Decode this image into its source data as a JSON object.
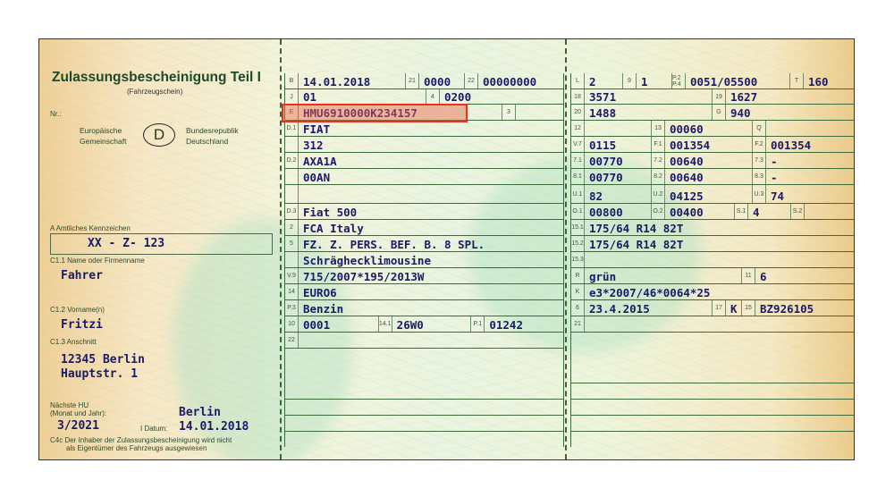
{
  "left": {
    "title": "Zulassungsbescheinigung Teil I",
    "subtitle": "(Fahrzeugschein)",
    "nr_label": "Nr.:",
    "eu_left": [
      "Europäische",
      "Gemeinschaft"
    ],
    "country_code": "D",
    "eu_right": [
      "Bundesrepublik",
      "Deutschland"
    ],
    "plate_label": "A Amtliches Kennzeichen",
    "plate": "XX - Z- 123",
    "name_label": "C1.1 Name oder Firmenname",
    "name": "Fahrer",
    "first_name_label": "C1.2 Vorname(n)",
    "first_name": "Fritzi",
    "address_label": "C1.3 Anschnitt",
    "address": [
      "12345 Berlin",
      "Hauptstr. 1"
    ],
    "hu_label": [
      "Nächste HU",
      "(Monat und Jahr):"
    ],
    "hu": "3/2021",
    "place": "Berlin",
    "date_label": "I Datum:",
    "date": "14.01.2018",
    "note": [
      "C4c Der Inhaber der Zulassungsbescheinigung wird nicht",
      "als Eigentümer des Fahrzeugs ausgewiesen"
    ]
  },
  "middle": [
    [
      {
        "code": "B",
        "value": "14.01.2018"
      },
      {
        "code": "21",
        "value": "0000"
      },
      {
        "code": "22",
        "value": "00000000"
      }
    ],
    [
      {
        "code": "J",
        "value": "01"
      },
      {
        "code": "4",
        "value": "0200"
      }
    ],
    [
      {
        "code": "E",
        "value": "HMU6910000K234157"
      },
      {
        "code": "3",
        "value": ""
      }
    ],
    [
      {
        "code": "D.1",
        "value": "FIAT"
      }
    ],
    [
      {
        "code": "",
        "value": "312"
      }
    ],
    [
      {
        "code": "D.2",
        "value": "AXA1A"
      }
    ],
    [
      {
        "code": "",
        "value": "00AN"
      }
    ],
    [
      {
        "code": "",
        "value": ""
      }
    ],
    [
      {
        "code": "D.3",
        "value": "Fiat 500"
      }
    ],
    [
      {
        "code": "2",
        "value": "FCA Italy"
      }
    ],
    [
      {
        "code": "5",
        "value": "FZ. Z. PERS. BEF. B. 8 SPL."
      }
    ],
    [
      {
        "code": "",
        "value": "Schräghecklimousine"
      }
    ],
    [
      {
        "code": "V.9",
        "value": "715/2007*195/2013W"
      }
    ],
    [
      {
        "code": "14",
        "value": "EURO6"
      }
    ],
    [
      {
        "code": "P.3",
        "value": "Benzin"
      }
    ],
    [
      {
        "code": "10",
        "value": "0001"
      },
      {
        "code": "14.1",
        "value": "26W0"
      },
      {
        "code": "P.1",
        "value": "01242"
      }
    ],
    [
      {
        "code": "22",
        "value": ""
      }
    ]
  ],
  "right": [
    [
      {
        "code": "L",
        "value": "2"
      },
      {
        "code": "9",
        "value": "1"
      },
      {
        "code": "P.2 P.4",
        "value": "0051/05500"
      },
      {
        "code": "T",
        "value": "160"
      }
    ],
    [
      {
        "code": "18",
        "value": "3571"
      },
      {
        "code": "19",
        "value": "1627"
      }
    ],
    [
      {
        "code": "20",
        "value": "1488"
      },
      {
        "code": "G",
        "value": "940"
      }
    ],
    [
      {
        "code": "12",
        "value": ""
      },
      {
        "code": "13",
        "value": "00060"
      },
      {
        "code": "Q",
        "value": ""
      }
    ],
    [
      {
        "code": "V.7",
        "value": "0115"
      },
      {
        "code": "F.1",
        "value": "001354"
      },
      {
        "code": "F.2",
        "value": "001354"
      }
    ],
    [
      {
        "code": "7.1",
        "value": "00770"
      },
      {
        "code": "7.2",
        "value": "00640"
      },
      {
        "code": "7.3",
        "value": "-"
      }
    ],
    [
      {
        "code": "8.1",
        "value": "00770"
      },
      {
        "code": "8.2",
        "value": "00640"
      },
      {
        "code": "8.3",
        "value": "-"
      }
    ],
    [
      {
        "code": "U.1",
        "value": "82"
      },
      {
        "code": "U.2",
        "value": "04125"
      },
      {
        "code": "U.3",
        "value": "74"
      }
    ],
    [
      {
        "code": "O.1",
        "value": "00800"
      },
      {
        "code": "O.2",
        "value": "00400"
      },
      {
        "code": "S.1",
        "value": "4"
      },
      {
        "code": "S.2",
        "value": ""
      }
    ],
    [
      {
        "code": "15.1",
        "value": "175/64 R14 82T"
      }
    ],
    [
      {
        "code": "15.2",
        "value": "175/64 R14 82T"
      }
    ],
    [
      {
        "code": "15.3",
        "value": ""
      }
    ],
    [
      {
        "code": "R",
        "value": "grün"
      },
      {
        "code": "11",
        "value": "6"
      }
    ],
    [
      {
        "code": "K",
        "value": "e3*2007/46*0064*25"
      }
    ],
    [
      {
        "code": "6",
        "value": "23.4.2015"
      },
      {
        "code": "17",
        "value": "K"
      },
      {
        "code": "15",
        "value": "BZ926105"
      }
    ],
    [
      {
        "code": "21",
        "value": ""
      }
    ]
  ],
  "highlight_color": "#e8321e"
}
